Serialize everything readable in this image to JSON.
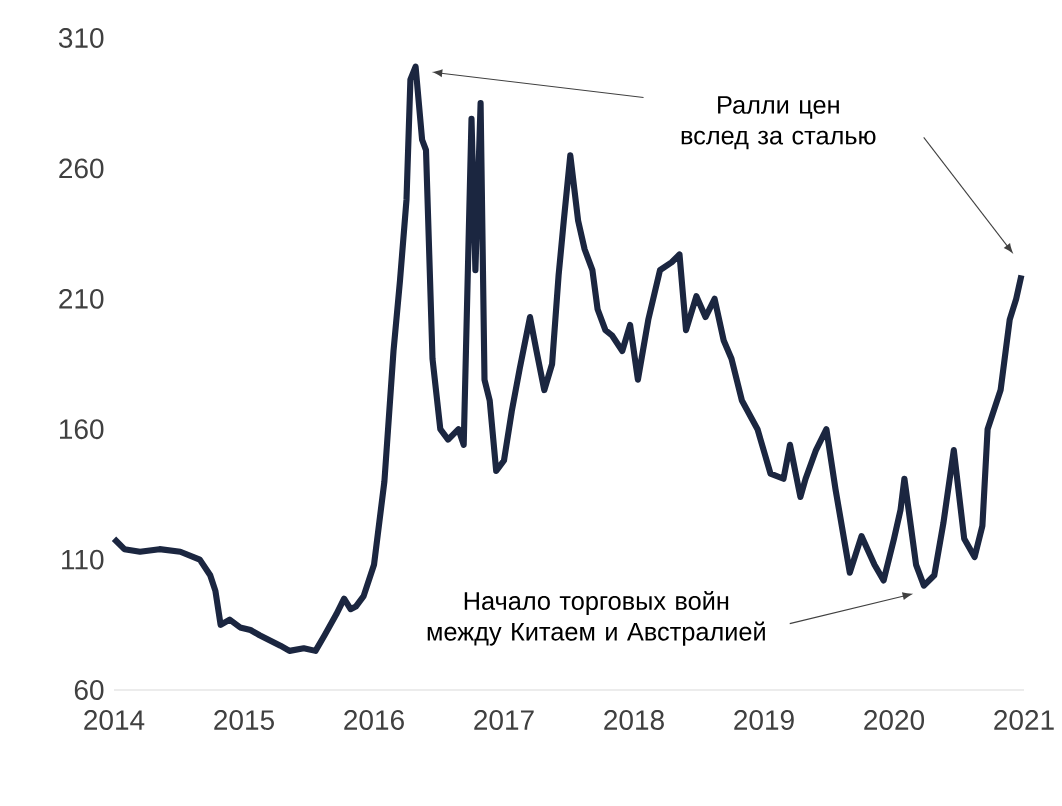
{
  "chart_data": {
    "type": "line",
    "color": "#1b2640",
    "x": [
      2014.0,
      2014.08,
      2014.2,
      2014.35,
      2014.51,
      2014.66,
      2014.74,
      2014.78,
      2014.82,
      2014.89,
      2014.97,
      2015.05,
      2015.12,
      2015.28,
      2015.35,
      2015.46,
      2015.55,
      2015.62,
      2015.71,
      2015.77,
      2015.82,
      2015.86,
      2015.92,
      2016.0,
      2016.08,
      2016.15,
      2016.2,
      2016.25,
      2016.28,
      2016.32,
      2016.37,
      2016.4,
      2016.45,
      2016.51,
      2016.57,
      2016.65,
      2016.69,
      2016.75,
      2016.78,
      2016.82,
      2016.85,
      2016.89,
      2016.94,
      2017.0,
      2017.06,
      2017.12,
      2017.2,
      2017.25,
      2017.31,
      2017.37,
      2017.42,
      2017.46,
      2017.51,
      2017.57,
      2017.62,
      2017.68,
      2017.72,
      2017.78,
      2017.83,
      2017.91,
      2017.97,
      2018.03,
      2018.11,
      2018.2,
      2018.29,
      2018.35,
      2018.4,
      2018.48,
      2018.55,
      2018.62,
      2018.69,
      2018.75,
      2018.83,
      2018.95,
      2019.05,
      2019.15,
      2019.2,
      2019.28,
      2019.32,
      2019.4,
      2019.48,
      2019.55,
      2019.66,
      2019.75,
      2019.85,
      2019.92,
      2020.0,
      2020.05,
      2020.08,
      2020.17,
      2020.23,
      2020.31,
      2020.38,
      2020.46,
      2020.54,
      2020.62,
      2020.68,
      2020.72,
      2020.82,
      2020.89,
      2020.94,
      2020.98
    ],
    "values": [
      118,
      114,
      113,
      114,
      113,
      110,
      104,
      98,
      85,
      87,
      84,
      83,
      81,
      77,
      75,
      76,
      75,
      81,
      89,
      95,
      91,
      92,
      96,
      108,
      140,
      190,
      217,
      248,
      294,
      299,
      271,
      267,
      187,
      160,
      156,
      160,
      154,
      279,
      221,
      285,
      179,
      171,
      144,
      148,
      167,
      183,
      203,
      190,
      175,
      185,
      219,
      240,
      265,
      240,
      229,
      221,
      206,
      198,
      196,
      190,
      200,
      179,
      202,
      221,
      224,
      227,
      198,
      211,
      203,
      210,
      194,
      187,
      171,
      160,
      143,
      141,
      154,
      134,
      141,
      152,
      160,
      137,
      105,
      119,
      108,
      102,
      118,
      129,
      141,
      108,
      100,
      104,
      124,
      152,
      118,
      111,
      123,
      160,
      175,
      202,
      210,
      219
    ],
    "xlim": [
      2014,
      2021
    ],
    "ylim": [
      60,
      310
    ],
    "xticks": [
      2014,
      2015,
      2016,
      2017,
      2018,
      2019,
      2020,
      2021
    ],
    "yticks": [
      60,
      110,
      160,
      210,
      260,
      310
    ],
    "grid": false,
    "annotations": [
      "Ралли цен вслед за сталью",
      "Начало торговых войн между Китаем и Австралией"
    ]
  }
}
